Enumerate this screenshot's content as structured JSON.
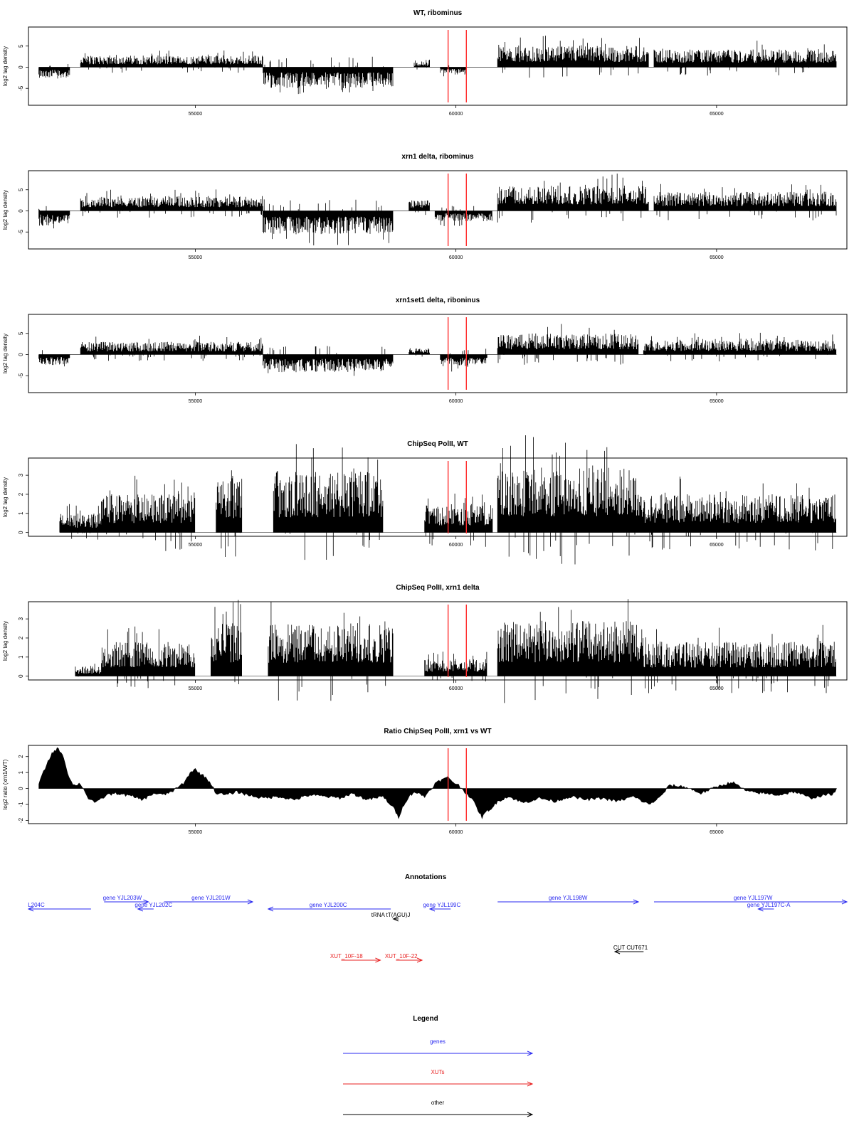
{
  "colors": {
    "data": "#000000",
    "marker": "#ff3030",
    "gene": "#2a2af0",
    "xut": "#e82020",
    "other": "#000000"
  },
  "chart_data": [
    {
      "type": "bar",
      "title": "WT, ribominus",
      "ylabel": "log2 tag density",
      "xlim": [
        51800,
        67500
      ],
      "ylim": [
        -9,
        9.5
      ],
      "yticks": [
        -5,
        0,
        5
      ],
      "xticks": [
        55000,
        60000,
        65000
      ],
      "vlines": [
        59850,
        60200
      ],
      "segments": [
        {
          "x0": 52000,
          "x1": 52600,
          "dir": -1,
          "amp": 2.5
        },
        {
          "x0": 52800,
          "x1": 56300,
          "dir": 1,
          "amp": 2.8
        },
        {
          "x0": 56300,
          "x1": 58800,
          "dir": -1,
          "amp": 5.0
        },
        {
          "x0": 59200,
          "x1": 59500,
          "dir": 1,
          "amp": 1.2
        },
        {
          "x0": 59700,
          "x1": 60200,
          "dir": -1,
          "amp": 1.5
        },
        {
          "x0": 60800,
          "x1": 63700,
          "dir": 1,
          "amp": 5.0
        },
        {
          "x0": 63800,
          "x1": 67300,
          "dir": 1,
          "amp": 4.2
        }
      ]
    },
    {
      "type": "bar",
      "title": "xrn1 delta, ribominus",
      "ylabel": "log2 tag density",
      "xlim": [
        51800,
        67500
      ],
      "ylim": [
        -9,
        9.5
      ],
      "yticks": [
        -5,
        0,
        5
      ],
      "xticks": [
        55000,
        60000,
        65000
      ],
      "vlines": [
        59850,
        60200
      ],
      "segments": [
        {
          "x0": 52000,
          "x1": 52600,
          "dir": -1,
          "amp": 3.5
        },
        {
          "x0": 52800,
          "x1": 56300,
          "dir": 1,
          "amp": 3.5
        },
        {
          "x0": 56300,
          "x1": 58800,
          "dir": -1,
          "amp": 5.5
        },
        {
          "x0": 59100,
          "x1": 59500,
          "dir": 1,
          "amp": 2.5
        },
        {
          "x0": 59600,
          "x1": 60700,
          "dir": -1,
          "amp": 2.5
        },
        {
          "x0": 60800,
          "x1": 63700,
          "dir": 1,
          "amp": 6.0
        },
        {
          "x0": 63800,
          "x1": 67300,
          "dir": 1,
          "amp": 4.5
        }
      ]
    },
    {
      "type": "bar",
      "title": "xrn1set1 delta, riboninus",
      "ylabel": "log2 tag density",
      "xlim": [
        51800,
        67500
      ],
      "ylim": [
        -9,
        9.5
      ],
      "yticks": [
        -5,
        0,
        5
      ],
      "xticks": [
        55000,
        60000,
        65000
      ],
      "vlines": [
        59850,
        60200
      ],
      "segments": [
        {
          "x0": 52000,
          "x1": 52600,
          "dir": -1,
          "amp": 2.5
        },
        {
          "x0": 52800,
          "x1": 56300,
          "dir": 1,
          "amp": 3.0
        },
        {
          "x0": 56300,
          "x1": 58800,
          "dir": -1,
          "amp": 4.2
        },
        {
          "x0": 59100,
          "x1": 59500,
          "dir": 1,
          "amp": 1.5
        },
        {
          "x0": 59700,
          "x1": 60600,
          "dir": -1,
          "amp": 3.0
        },
        {
          "x0": 60800,
          "x1": 63500,
          "dir": 1,
          "amp": 5.0
        },
        {
          "x0": 63600,
          "x1": 67300,
          "dir": 1,
          "amp": 3.5
        }
      ]
    },
    {
      "type": "bar",
      "title": "ChipSeq PolII, WT",
      "ylabel": "log2 tag density",
      "xlim": [
        51800,
        67500
      ],
      "ylim": [
        -0.2,
        3.9
      ],
      "yticks": [
        0,
        1,
        2,
        3
      ],
      "xticks": [
        55000,
        60000,
        65000
      ],
      "vlines": [
        59850,
        60200
      ],
      "segments": [
        {
          "x0": 52400,
          "x1": 53200,
          "dir": 1,
          "amp": 1.0
        },
        {
          "x0": 53200,
          "x1": 55000,
          "dir": 1,
          "amp": 2.0
        },
        {
          "x0": 55400,
          "x1": 55900,
          "dir": 1,
          "amp": 3.0
        },
        {
          "x0": 56500,
          "x1": 58600,
          "dir": 1,
          "amp": 3.2
        },
        {
          "x0": 59400,
          "x1": 60700,
          "dir": 1,
          "amp": 1.5
        },
        {
          "x0": 60800,
          "x1": 63500,
          "dir": 1,
          "amp": 3.4
        },
        {
          "x0": 63500,
          "x1": 67300,
          "dir": 1,
          "amp": 2.0
        }
      ]
    },
    {
      "type": "bar",
      "title": "ChipSeq PolII, xrn1 delta",
      "ylabel": "log2 tag density",
      "xlim": [
        51800,
        67500
      ],
      "ylim": [
        -0.2,
        3.9
      ],
      "yticks": [
        0,
        1,
        2,
        3
      ],
      "xticks": [
        55000,
        60000,
        65000
      ],
      "vlines": [
        59850,
        60200
      ],
      "segments": [
        {
          "x0": 52700,
          "x1": 53200,
          "dir": 1,
          "amp": 0.5
        },
        {
          "x0": 53200,
          "x1": 55000,
          "dir": 1,
          "amp": 1.8
        },
        {
          "x0": 55300,
          "x1": 55900,
          "dir": 1,
          "amp": 2.8
        },
        {
          "x0": 56400,
          "x1": 58800,
          "dir": 1,
          "amp": 2.8
        },
        {
          "x0": 59400,
          "x1": 60600,
          "dir": 1,
          "amp": 0.9
        },
        {
          "x0": 60800,
          "x1": 63500,
          "dir": 1,
          "amp": 2.9
        },
        {
          "x0": 63500,
          "x1": 67300,
          "dir": 1,
          "amp": 1.8
        }
      ]
    },
    {
      "type": "area",
      "title": "Ratio ChipSeq PolII, xrn1 vs WT",
      "ylabel": "log2 ratio (xrn1/WT)",
      "xlim": [
        51800,
        67500
      ],
      "ylim": [
        -2.2,
        2.7
      ],
      "yticks": [
        -2,
        -1,
        0,
        1,
        2
      ],
      "xticks": [
        55000,
        60000,
        65000
      ],
      "vlines": [
        59850,
        60200
      ],
      "x": [
        52000,
        52150,
        52250,
        52350,
        52450,
        52550,
        52650,
        52800,
        52950,
        53100,
        53300,
        53500,
        53800,
        54000,
        54200,
        54400,
        54600,
        54800,
        54900,
        55000,
        55100,
        55200,
        55300,
        55400,
        55600,
        55800,
        56000,
        56300,
        56600,
        56900,
        57200,
        57500,
        57800,
        58000,
        58300,
        58600,
        58800,
        58900,
        59000,
        59100,
        59200,
        59400,
        59600,
        59700,
        59850,
        59950,
        60050,
        60200,
        60300,
        60400,
        60500,
        60600,
        60700,
        60800,
        61000,
        61300,
        61600,
        61900,
        62200,
        62500,
        62800,
        63100,
        63400,
        63700,
        63900,
        64100,
        64400,
        64700,
        65000,
        65300,
        65600,
        65900,
        66200,
        66500,
        66800,
        67100,
        67300
      ],
      "y": [
        0.3,
        1.5,
        2.2,
        2.5,
        2.2,
        1.0,
        0.2,
        0.3,
        -0.6,
        -0.9,
        -0.4,
        -0.3,
        -0.5,
        -0.7,
        -0.3,
        -0.4,
        -0.1,
        0.4,
        1.0,
        1.2,
        0.9,
        0.7,
        0.3,
        -0.3,
        -0.4,
        -0.2,
        -0.4,
        -0.6,
        -0.5,
        -0.7,
        -0.4,
        -0.5,
        -0.6,
        -0.3,
        -0.7,
        -0.5,
        -1.2,
        -1.8,
        -1.0,
        -0.5,
        -0.2,
        -0.5,
        0.3,
        0.5,
        0.7,
        0.4,
        0.2,
        -0.3,
        -0.6,
        -1.2,
        -1.8,
        -1.4,
        -1.2,
        -0.8,
        -0.5,
        -0.9,
        -0.6,
        -0.8,
        -0.5,
        -0.7,
        -0.6,
        -0.8,
        -0.5,
        -1.0,
        -0.6,
        0.2,
        0.1,
        -0.3,
        0.1,
        0.4,
        -0.2,
        -0.3,
        -0.4,
        -0.2,
        -0.6,
        -0.4,
        -0.3
      ]
    }
  ],
  "annotations": {
    "title": "Annotations",
    "items": [
      {
        "label": "L204C",
        "color": "gene",
        "x0": 51800,
        "x1": 53000,
        "dir": -1,
        "row": 1,
        "lx": 51950
      },
      {
        "label": "gene YJL203W",
        "color": "gene",
        "x0": 53250,
        "x1": 54100,
        "dir": 1,
        "row": 0,
        "lx": 53600
      },
      {
        "label": "gene YJL202C",
        "color": "gene",
        "x0": 53900,
        "x1": 54200,
        "dir": -1,
        "row": 1,
        "lx": 54200
      },
      {
        "label": "gene YJL201W",
        "color": "gene",
        "x0": 54400,
        "x1": 56100,
        "dir": 1,
        "row": 0,
        "lx": 55300
      },
      {
        "label": "gene YJL200C",
        "color": "gene",
        "x0": 56400,
        "x1": 58750,
        "dir": -1,
        "row": 1,
        "lx": 57550
      },
      {
        "label": "gene YJL199C",
        "color": "gene",
        "x0": 59500,
        "x1": 59900,
        "dir": -1,
        "row": 1,
        "lx": 59730
      },
      {
        "label": "gene YJL198W",
        "color": "gene",
        "x0": 60800,
        "x1": 63500,
        "dir": 1,
        "row": 0,
        "lx": 62150
      },
      {
        "label": "gene YJL197W",
        "color": "gene",
        "x0": 63800,
        "x1": 67500,
        "dir": 1,
        "row": 0,
        "lx": 65700
      },
      {
        "label": "gene YJL197C-A",
        "color": "gene",
        "x0": 65800,
        "x1": 66100,
        "dir": -1,
        "row": 1,
        "lx": 66000
      },
      {
        "label": "tRNA tT(AGU)J",
        "color": "other",
        "x0": 58800,
        "x1": 58900,
        "dir": -1,
        "row": 2,
        "lx": 58750
      },
      {
        "label": "XUT_10F-18",
        "color": "xut",
        "x0": 57800,
        "x1": 58550,
        "dir": 1,
        "row": 4,
        "lx": 57900
      },
      {
        "label": "XUT_10F-22",
        "color": "xut",
        "x0": 58850,
        "x1": 59350,
        "dir": 1,
        "row": 4,
        "lx": 58950
      },
      {
        "label": "CUT CUT671",
        "color": "other",
        "x0": 63050,
        "x1": 63600,
        "dir": -1,
        "row": 3,
        "lx": 63350
      }
    ]
  },
  "legend": {
    "title": "Legend",
    "items": [
      {
        "label": "genes",
        "color": "gene"
      },
      {
        "label": "XUTs",
        "color": "xut"
      },
      {
        "label": "other",
        "color": "other"
      }
    ]
  }
}
